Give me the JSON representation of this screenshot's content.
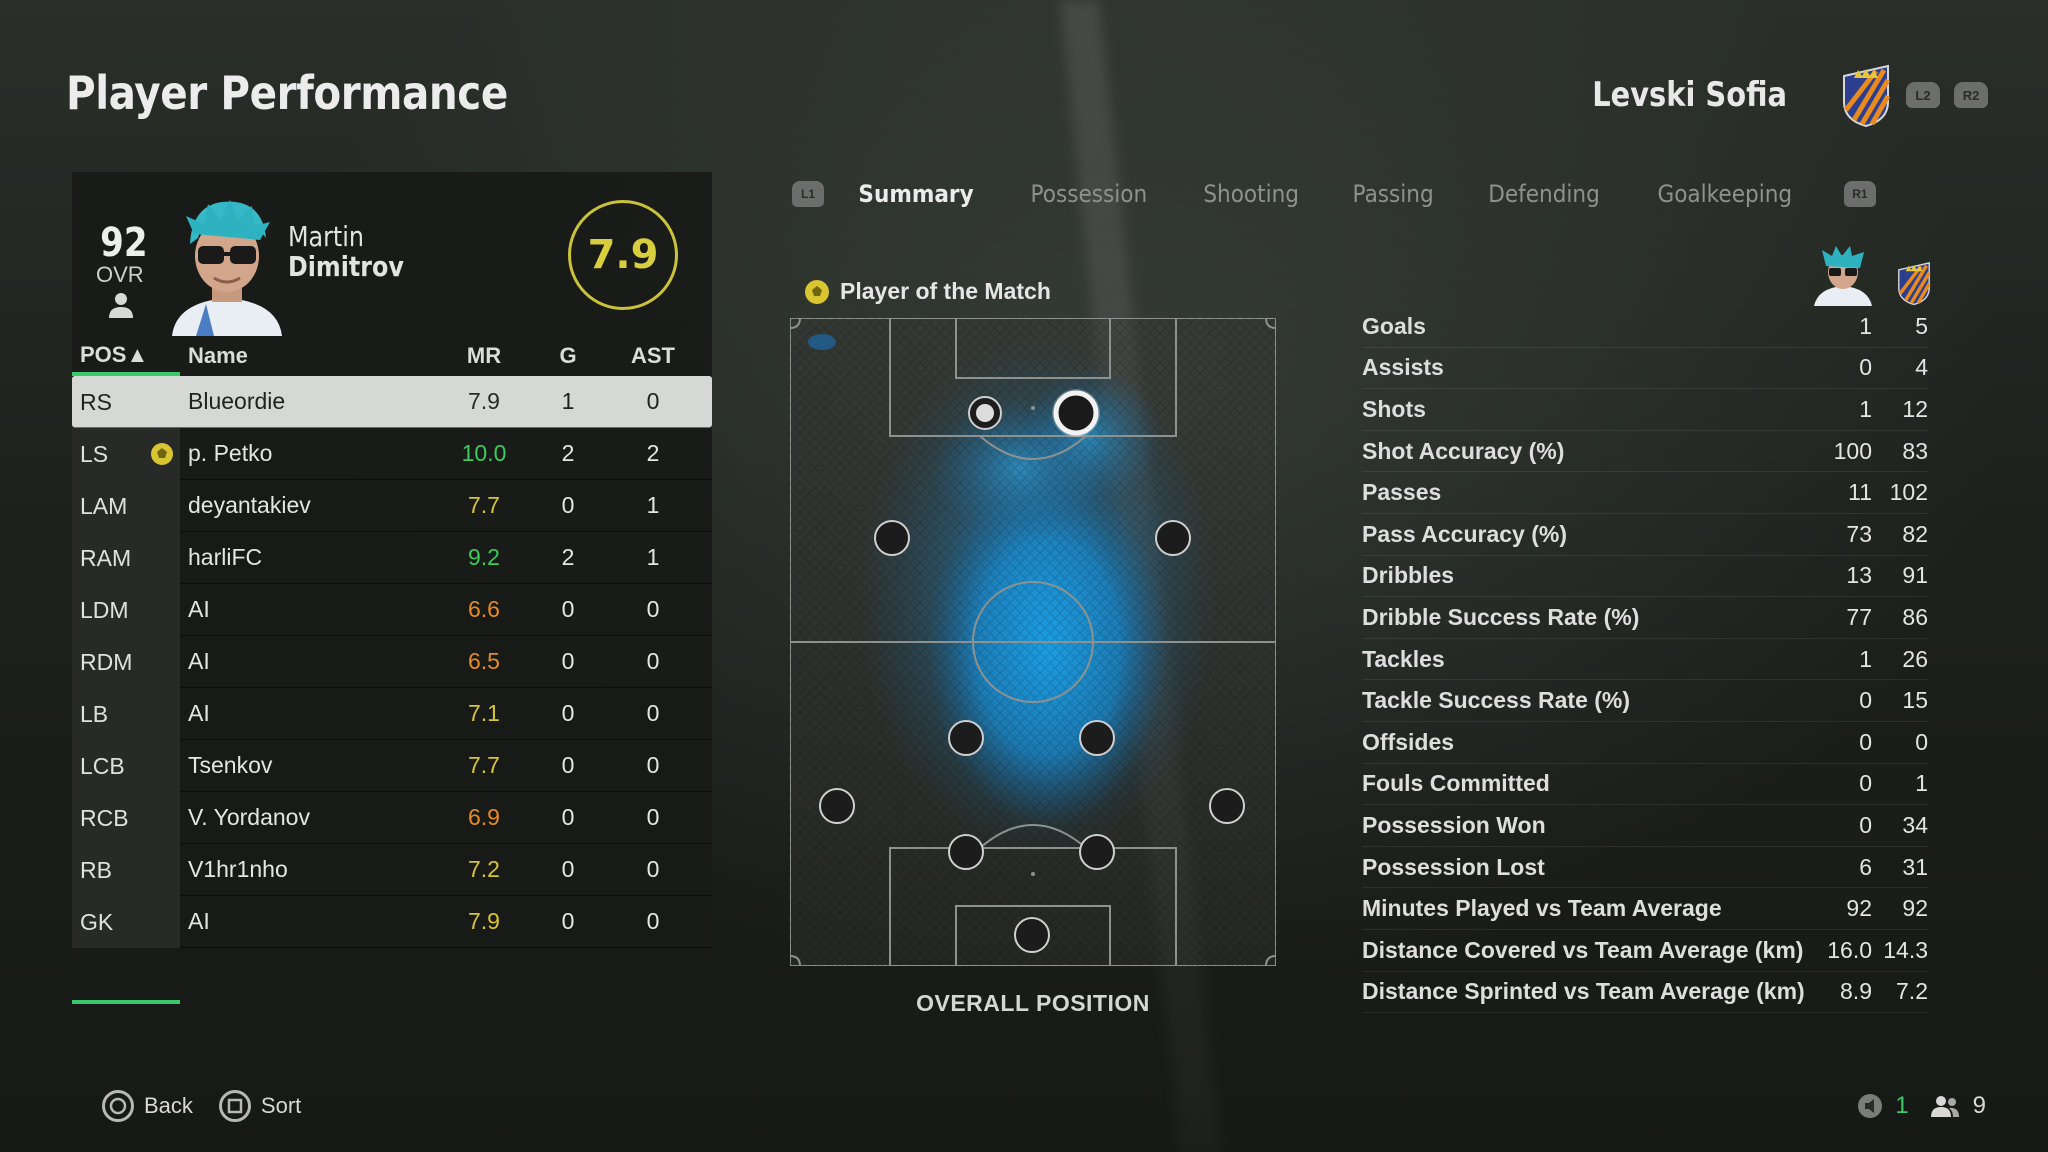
{
  "page_title": "Player Performance",
  "club": {
    "name": "Levski Sofia",
    "hint_l2": "L2",
    "hint_r2": "R2",
    "colors": {
      "primary": "#2c3f8f",
      "secondary": "#e88a1e"
    }
  },
  "player": {
    "ovr": "92",
    "ovr_label": "OVR",
    "first_name": "Martin",
    "last_name": "Dimitrov",
    "rating": "7.9"
  },
  "table": {
    "headers": {
      "pos": "POS▲",
      "name": "Name",
      "mr": "MR",
      "g": "G",
      "ast": "AST"
    },
    "rows": [
      {
        "pos": "RS",
        "name": "Blueordie",
        "mr": "7.9",
        "g": "1",
        "ast": "0",
        "mr_color": "#2a2a2a",
        "selected": true
      },
      {
        "pos": "LS",
        "name": "p. Petko",
        "mr": "10.0",
        "g": "2",
        "ast": "2",
        "mr_color": "#3ccb5a",
        "motm": true
      },
      {
        "pos": "LAM",
        "name": "deyantakiev",
        "mr": "7.7",
        "g": "0",
        "ast": "1",
        "mr_color": "#d8c438"
      },
      {
        "pos": "RAM",
        "name": "harliFC",
        "mr": "9.2",
        "g": "2",
        "ast": "1",
        "mr_color": "#3ccb5a"
      },
      {
        "pos": "LDM",
        "name": "AI",
        "mr": "6.6",
        "g": "0",
        "ast": "0",
        "mr_color": "#e58a2a"
      },
      {
        "pos": "RDM",
        "name": "AI",
        "mr": "6.5",
        "g": "0",
        "ast": "0",
        "mr_color": "#e58a2a"
      },
      {
        "pos": "LB",
        "name": "AI",
        "mr": "7.1",
        "g": "0",
        "ast": "0",
        "mr_color": "#d8c438"
      },
      {
        "pos": "LCB",
        "name": "Tsenkov",
        "mr": "7.7",
        "g": "0",
        "ast": "0",
        "mr_color": "#d8c438"
      },
      {
        "pos": "RCB",
        "name": "V. Yordanov",
        "mr": "6.9",
        "g": "0",
        "ast": "0",
        "mr_color": "#e58a2a"
      },
      {
        "pos": "RB",
        "name": "V1hr1nho",
        "mr": "7.2",
        "g": "0",
        "ast": "0",
        "mr_color": "#d8c438"
      },
      {
        "pos": "GK",
        "name": "AI",
        "mr": "7.9",
        "g": "0",
        "ast": "0",
        "mr_color": "#d8c438"
      }
    ]
  },
  "tabs": {
    "hint_l1": "L1",
    "hint_r1": "R1",
    "items": [
      "Summary",
      "Possession",
      "Shooting",
      "Passing",
      "Defending",
      "Goalkeeping"
    ],
    "active": "Summary"
  },
  "potm_label": "Player of the Match",
  "pitch_label": "OVERALL POSITION",
  "stats": [
    {
      "label": "Goals",
      "player": "1",
      "team": "5"
    },
    {
      "label": "Assists",
      "player": "0",
      "team": "4"
    },
    {
      "label": "Shots",
      "player": "1",
      "team": "12"
    },
    {
      "label": "Shot Accuracy (%)",
      "player": "100",
      "team": "83"
    },
    {
      "label": "Passes",
      "player": "11",
      "team": "102"
    },
    {
      "label": "Pass Accuracy (%)",
      "player": "73",
      "team": "82"
    },
    {
      "label": "Dribbles",
      "player": "13",
      "team": "91"
    },
    {
      "label": "Dribble Success Rate (%)",
      "player": "77",
      "team": "86"
    },
    {
      "label": "Tackles",
      "player": "1",
      "team": "26"
    },
    {
      "label": "Tackle Success Rate (%)",
      "player": "0",
      "team": "15"
    },
    {
      "label": "Offsides",
      "player": "0",
      "team": "0"
    },
    {
      "label": "Fouls Committed",
      "player": "0",
      "team": "1"
    },
    {
      "label": "Possession Won",
      "player": "0",
      "team": "34"
    },
    {
      "label": "Possession Lost",
      "player": "6",
      "team": "31"
    },
    {
      "label": "Minutes Played vs Team Average",
      "player": "92",
      "team": "92"
    },
    {
      "label": "Distance Covered vs Team Average (km)",
      "player": "16.0",
      "team": "14.3"
    },
    {
      "label": "Distance Sprinted vs Team Average (km)",
      "player": "8.9",
      "team": "7.2"
    }
  ],
  "footer": {
    "back": "Back",
    "sort": "Sort",
    "count_a": "1",
    "count_b": "9"
  }
}
